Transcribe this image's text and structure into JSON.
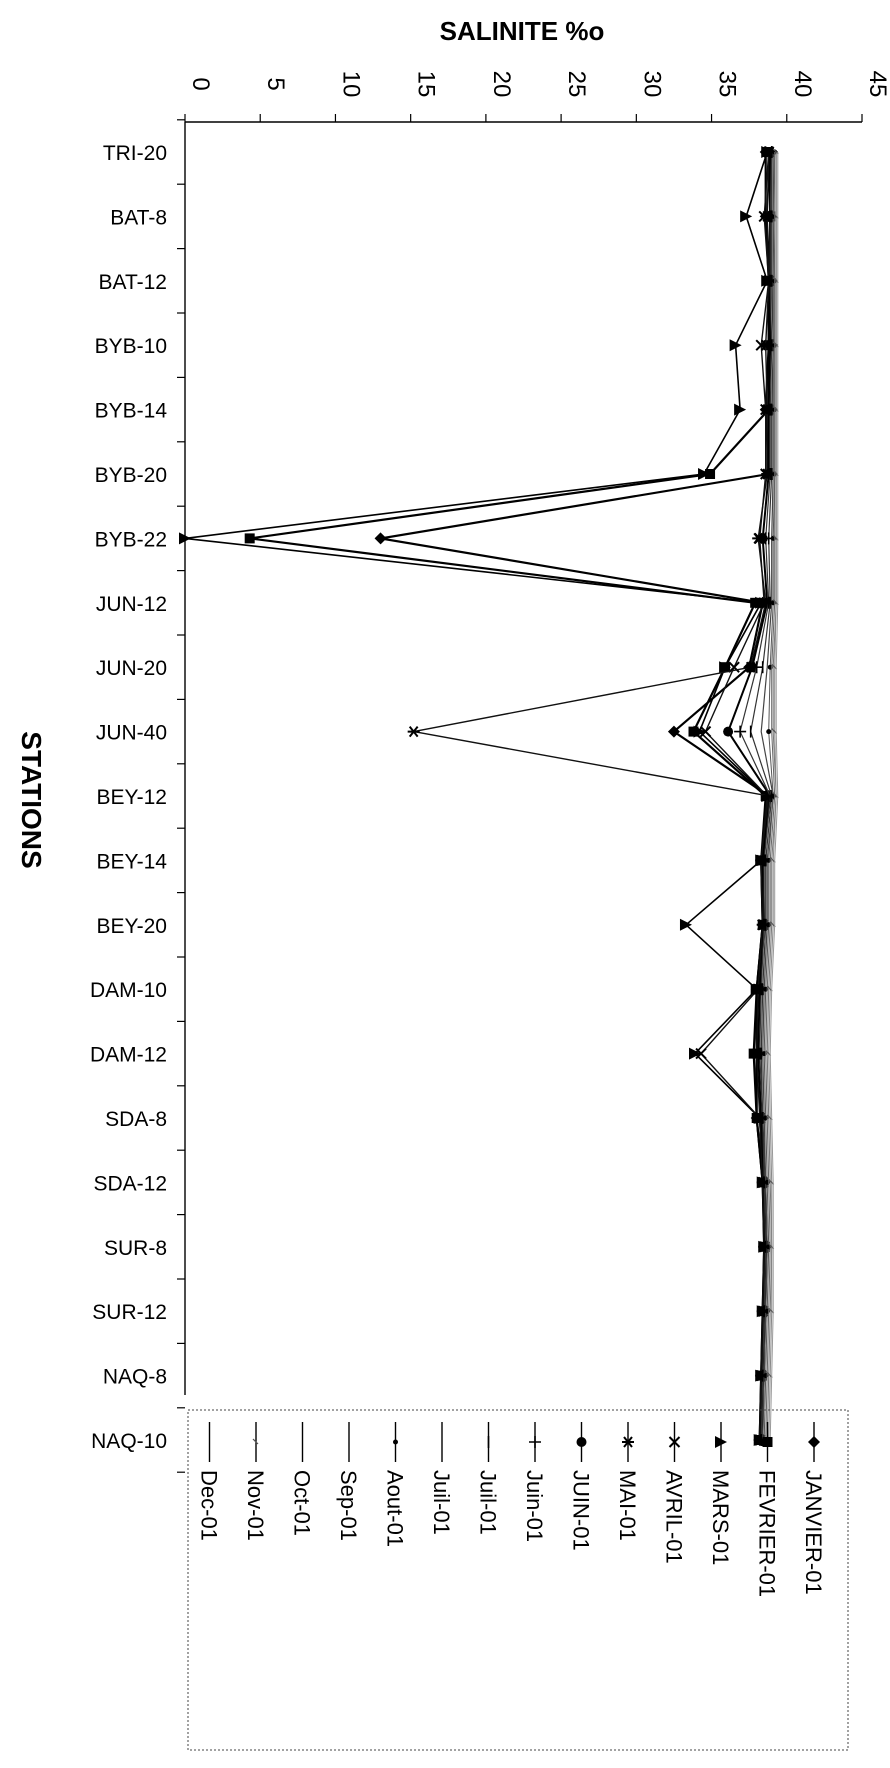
{
  "chart_data": {
    "type": "line",
    "title": "SALINITE %o",
    "xlabel": "STATIONS",
    "ylabel": "SALINITE %o",
    "value_axis": {
      "min": 0,
      "max": 45,
      "step": 5,
      "ticks": [
        "0",
        "5",
        "10",
        "15",
        "20",
        "25",
        "30",
        "35",
        "40",
        "45"
      ]
    },
    "grid": false,
    "legend_position": "bottom",
    "categories": [
      "TRI-20",
      "BAT-8",
      "BAT-12",
      "BYB-10",
      "BYB-14",
      "BYB-20",
      "BYB-22",
      "JUN-12",
      "JUN-20",
      "JUN-40",
      "BEY-12",
      "BEY-14",
      "BEY-20",
      "DAM-10",
      "DAM-12",
      "SDA-8",
      "SDA-12",
      "SUR-8",
      "SUR-12",
      "NAQ-8",
      "NAQ-10"
    ],
    "series": [
      {
        "name": "JANVIER-01",
        "marker": "diamond",
        "values": [
          38.6,
          38.6,
          38.8,
          38.8,
          38.6,
          38.8,
          13.0,
          38.4,
          37.5,
          32.5,
          38.8,
          38.3,
          38.4,
          38.0,
          38.0,
          38.0,
          38.4,
          38.5,
          38.4,
          38.3,
          38.2
        ]
      },
      {
        "name": "FEVRIER-01",
        "marker": "square",
        "values": [
          38.8,
          38.9,
          38.8,
          38.8,
          38.8,
          34.9,
          4.3,
          37.9,
          35.9,
          33.8,
          38.6,
          38.3,
          38.4,
          38.0,
          37.8,
          38.0,
          38.4,
          38.5,
          38.4,
          38.3,
          38.2
        ]
      },
      {
        "name": "MARS-01",
        "marker": "triangle",
        "values": [
          38.7,
          37.3,
          38.7,
          36.6,
          36.9,
          34.5,
          0.0,
          38.3,
          35.9,
          34.2,
          38.7,
          38.3,
          33.3,
          38.0,
          33.9,
          38.2,
          38.4,
          38.5,
          38.4,
          38.3,
          38.2
        ]
      },
      {
        "name": "AVRIL-01",
        "marker": "x",
        "values": [
          38.8,
          38.5,
          38.8,
          38.3,
          38.6,
          38.6,
          38.2,
          38.5,
          36.5,
          34.6,
          38.7,
          38.3,
          38.4,
          38.1,
          34.3,
          38.2,
          38.4,
          38.5,
          38.4,
          38.3,
          38.2
        ]
      },
      {
        "name": "MAI-01",
        "marker": "star",
        "values": [
          38.8,
          38.7,
          38.8,
          38.6,
          38.7,
          38.7,
          38.1,
          38.6,
          37.6,
          15.2,
          38.8,
          38.3,
          38.4,
          38.1,
          38.0,
          38.2,
          38.4,
          38.5,
          38.4,
          38.3,
          38.2
        ]
      },
      {
        "name": "JUIN-01",
        "marker": "circle",
        "values": [
          38.9,
          38.9,
          38.9,
          38.9,
          38.8,
          38.8,
          38.4,
          38.7,
          37.7,
          36.1,
          38.9,
          38.4,
          38.5,
          38.2,
          38.1,
          38.3,
          38.5,
          38.6,
          38.5,
          38.4,
          38.3
        ]
      },
      {
        "name": "Juin-01",
        "marker": "plus",
        "values": [
          39.0,
          38.9,
          38.9,
          39.0,
          38.9,
          38.9,
          38.6,
          38.8,
          38.0,
          36.9,
          38.9,
          38.5,
          38.5,
          38.3,
          38.2,
          38.4,
          38.5,
          38.6,
          38.5,
          38.4,
          38.3
        ]
      },
      {
        "name": "Juil-01",
        "marker": "dash",
        "values": [
          39.0,
          39.0,
          39.0,
          39.1,
          39.0,
          39.0,
          38.8,
          38.9,
          38.4,
          37.6,
          39.0,
          38.6,
          38.6,
          38.4,
          38.3,
          38.4,
          38.6,
          38.7,
          38.6,
          38.5,
          38.4
        ]
      },
      {
        "name": "Juil-01",
        "marker": "none",
        "values": [
          39.1,
          39.1,
          39.1,
          39.1,
          39.1,
          39.1,
          39.0,
          39.0,
          38.7,
          38.3,
          39.1,
          38.7,
          38.7,
          38.5,
          38.4,
          38.5,
          38.6,
          38.7,
          38.6,
          38.5,
          38.4
        ]
      },
      {
        "name": "Aout-01",
        "marker": "dot",
        "values": [
          39.2,
          39.1,
          39.2,
          39.2,
          39.2,
          39.2,
          39.1,
          39.1,
          38.9,
          38.8,
          39.1,
          38.8,
          38.8,
          38.6,
          38.5,
          38.6,
          38.7,
          38.8,
          38.7,
          38.6,
          38.5
        ]
      },
      {
        "name": "Sep-01",
        "marker": "none",
        "values": [
          39.2,
          39.2,
          39.2,
          39.2,
          39.2,
          39.2,
          39.2,
          39.2,
          39.0,
          39.0,
          39.2,
          38.9,
          38.9,
          38.7,
          38.6,
          38.7,
          38.8,
          38.9,
          38.8,
          38.7,
          38.6
        ]
      },
      {
        "name": "Oct-01",
        "marker": "none",
        "values": [
          39.3,
          39.3,
          39.3,
          39.3,
          39.3,
          39.3,
          39.3,
          39.3,
          39.1,
          39.1,
          39.3,
          39.0,
          39.0,
          38.8,
          38.7,
          38.8,
          38.9,
          39.0,
          38.9,
          38.8,
          38.7
        ]
      },
      {
        "name": "Nov-01",
        "marker": "tick",
        "values": [
          39.3,
          39.3,
          39.3,
          39.3,
          39.3,
          39.3,
          39.3,
          39.3,
          39.2,
          39.2,
          39.3,
          39.1,
          39.1,
          38.9,
          38.8,
          38.9,
          39.0,
          39.0,
          39.0,
          38.9,
          38.8
        ]
      },
      {
        "name": "Dec-01",
        "marker": "none",
        "values": [
          39.4,
          39.4,
          39.4,
          39.4,
          39.4,
          39.4,
          39.4,
          39.4,
          39.3,
          39.3,
          39.4,
          39.2,
          39.2,
          39.0,
          38.9,
          39.0,
          39.1,
          39.1,
          39.1,
          39.0,
          38.9
        ]
      }
    ]
  }
}
